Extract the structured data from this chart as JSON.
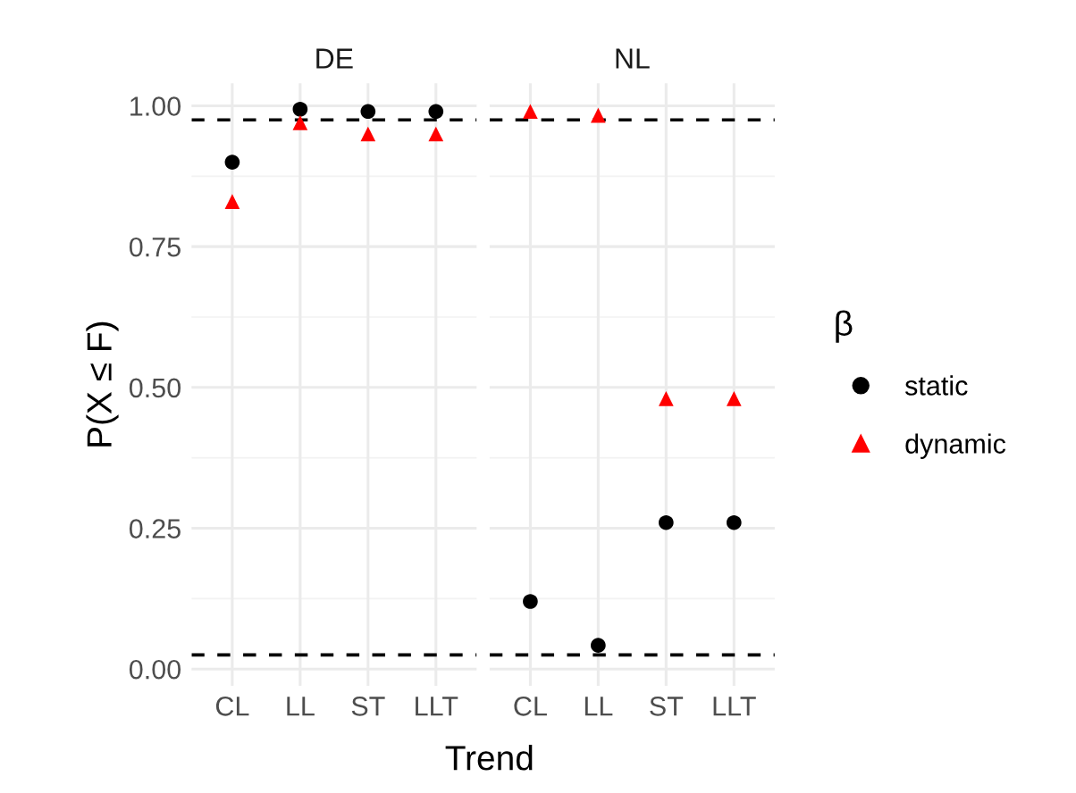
{
  "chart_data": [
    {
      "type": "scatter",
      "title": "DE",
      "xlabel": "Trend",
      "ylabel": "P(X ≤ F)",
      "categories": [
        "CL",
        "LL",
        "ST",
        "LLT"
      ],
      "ylim": [
        -0.03,
        1.04
      ],
      "yticks": [
        {
          "value": 0,
          "label": "0.00"
        },
        {
          "value": 0.25,
          "label": "0.25"
        },
        {
          "value": 0.5,
          "label": "0.50"
        },
        {
          "value": 0.75,
          "label": "0.75"
        },
        {
          "value": 1,
          "label": "1.00"
        }
      ],
      "grid": true,
      "series": [
        {
          "color": "#000000",
          "marker": "circle",
          "values": [
            0.9,
            0.994,
            0.99,
            0.99
          ]
        },
        {
          "color": "#ff0000",
          "marker": "triangle",
          "values": [
            0.83,
            0.97,
            0.95,
            0.95
          ]
        }
      ],
      "ref_lines": [
        {
          "axis": "y",
          "value": 0.975,
          "color": "#000000",
          "line_style": "dashed"
        },
        {
          "axis": "y",
          "value": 0.025,
          "color": "#000000",
          "line_style": "dashed"
        }
      ]
    },
    {
      "type": "scatter",
      "title": "NL",
      "categories": [
        "CL",
        "LL",
        "ST",
        "LLT"
      ],
      "ylim": [
        -0.03,
        1.04
      ],
      "yticks": [
        0,
        0.25,
        0.5,
        0.75,
        1
      ],
      "tick_labels": "x",
      "grid": true,
      "legend": "right",
      "legend_title": "β",
      "series": [
        {
          "name": "static",
          "color": "#000000",
          "marker": "circle",
          "values": [
            0.12,
            0.042,
            0.26,
            0.26
          ]
        },
        {
          "name": "dynamic",
          "color": "#ff0000",
          "marker": "triangle",
          "values": [
            0.99,
            0.983,
            0.48,
            0.48
          ]
        }
      ],
      "ref_lines": [
        {
          "axis": "y",
          "value": 0.975,
          "color": "#000000",
          "line_style": "dashed"
        },
        {
          "axis": "y",
          "value": 0.025,
          "color": "#000000",
          "line_style": "dashed"
        }
      ]
    }
  ]
}
